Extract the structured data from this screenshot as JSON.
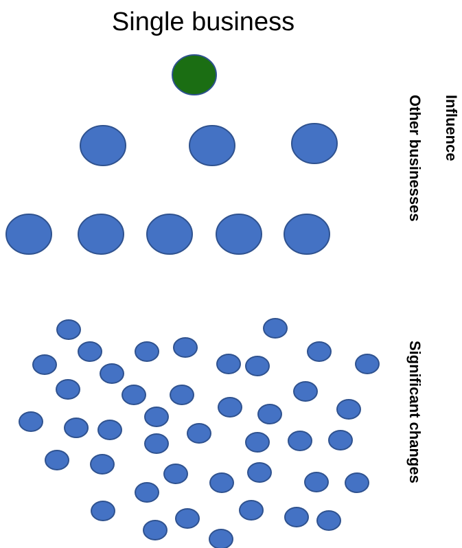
{
  "title": "Single business",
  "side_labels": {
    "influence": "Influence",
    "other_businesses": "Other businesses",
    "significant_changes": "Significant changes"
  },
  "colors": {
    "top_node_fill": "#1b6e13",
    "node_fill": "#4472c4",
    "node_stroke": "#2f528f",
    "text": "#000000",
    "background": "#ffffff"
  }
}
